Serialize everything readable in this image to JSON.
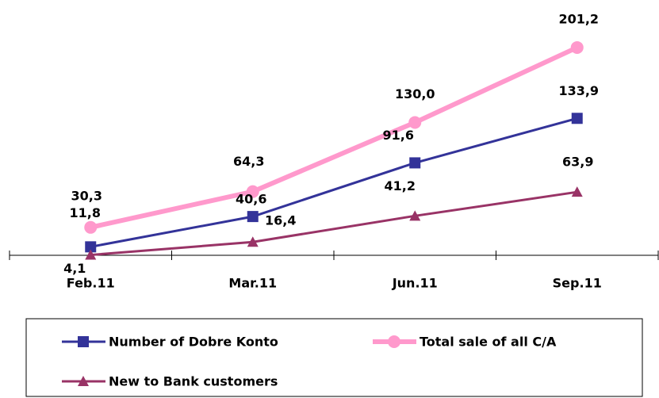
{
  "chart_data": {
    "type": "line",
    "categories": [
      "Feb.11",
      "Mar.11",
      "Jun.11",
      "Sep.11"
    ],
    "series": [
      {
        "name": "Number of Dobre Konto",
        "color": "#333399",
        "marker": "square",
        "values": [
          11.8,
          40.6,
          91.6,
          133.9
        ],
        "value_labels": [
          "11,8",
          "40,6",
          "91,6",
          "133,9"
        ]
      },
      {
        "name": "Total sale of all C/A",
        "color": "#ff99cc",
        "marker": "circle",
        "values": [
          30.3,
          64.3,
          130.0,
          201.2
        ],
        "value_labels": [
          "30,3",
          "64,3",
          "130,0",
          "201,2"
        ]
      },
      {
        "name": "New to Bank customers",
        "color": "#993366",
        "marker": "triangle",
        "values": [
          4.1,
          16.4,
          41.2,
          63.9
        ],
        "value_labels": [
          "4,1",
          "16,4",
          "41,2",
          "63,9"
        ]
      }
    ],
    "ylim": [
      0,
      220
    ]
  }
}
